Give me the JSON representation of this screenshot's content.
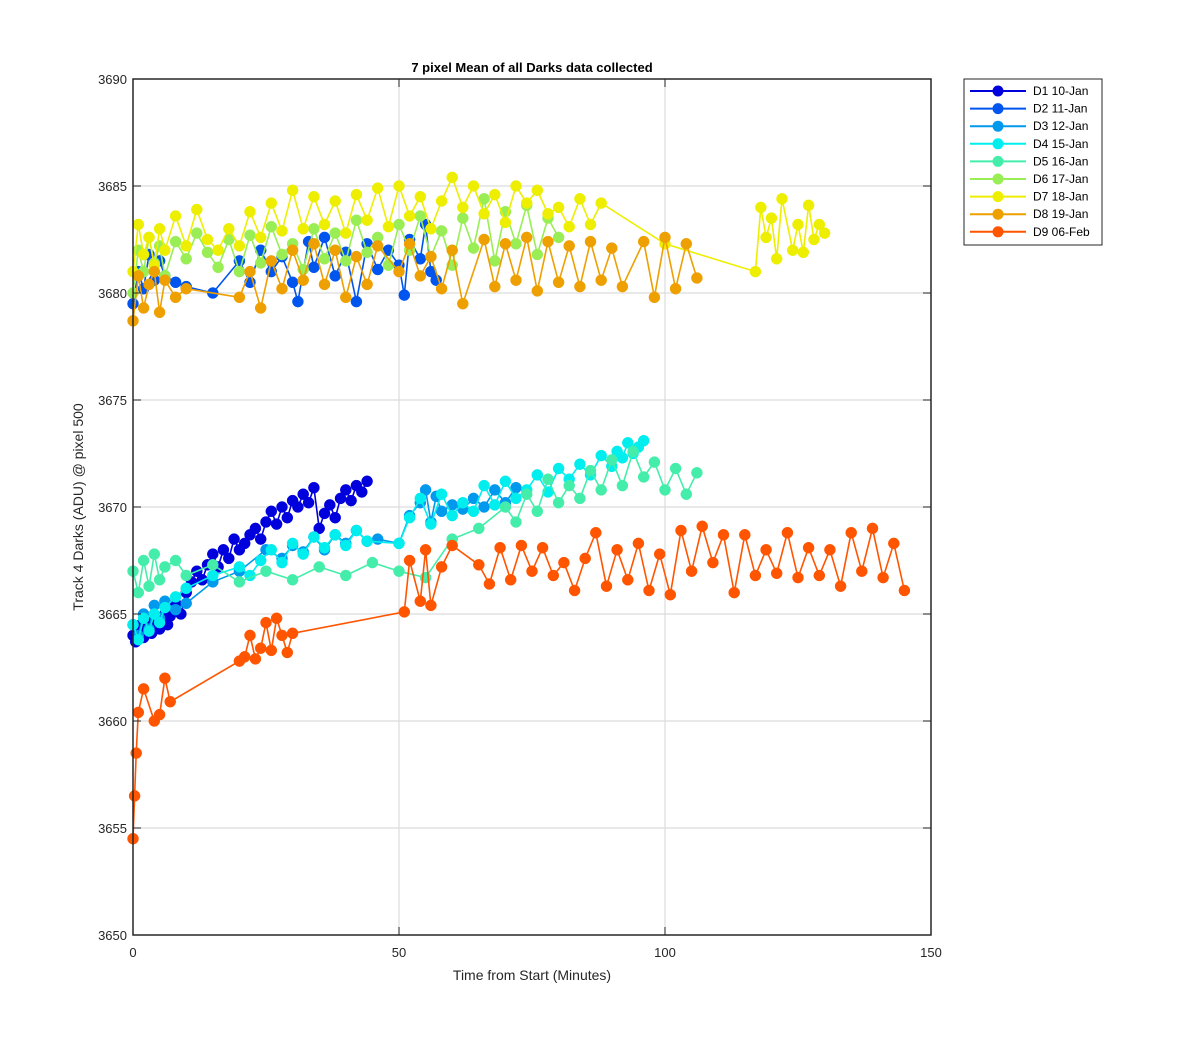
{
  "chart_data": {
    "type": "line",
    "title": "7 pixel Mean of all Darks data collected",
    "xlabel": "Time from Start (Minutes)",
    "ylabel": "Track 4 Darks (ADU) @ pixel 500",
    "xlim": [
      0,
      150
    ],
    "ylim": [
      3650,
      3690
    ],
    "xticks": [
      0,
      50,
      100,
      150
    ],
    "yticks": [
      3650,
      3655,
      3660,
      3665,
      3670,
      3675,
      3680,
      3685,
      3690
    ],
    "grid": true,
    "legend_position": "outside-top-right",
    "marker": "circle",
    "series": [
      {
        "name": "D1 10-Jan",
        "color": "#0000dd",
        "x": [
          0,
          0.5,
          1,
          1.5,
          2,
          2.5,
          3,
          3.5,
          4,
          4.5,
          5,
          5.5,
          6,
          6.5,
          7,
          8,
          9,
          10,
          11,
          12,
          13,
          14,
          15,
          16,
          17,
          18,
          19,
          20,
          21,
          22,
          23,
          24,
          25,
          26,
          27,
          28,
          29,
          30,
          31,
          32,
          33,
          34,
          35,
          36,
          37,
          38,
          39,
          40,
          41,
          42,
          43,
          44
        ],
        "y": [
          3664.0,
          3663.7,
          3664.2,
          3664.5,
          3663.9,
          3664.3,
          3664.6,
          3664.1,
          3664.4,
          3664.8,
          3664.3,
          3664.6,
          3665.0,
          3664.5,
          3664.9,
          3665.5,
          3665.0,
          3666.0,
          3666.5,
          3667.0,
          3666.6,
          3667.3,
          3667.8,
          3667.2,
          3668.0,
          3667.6,
          3668.5,
          3668.0,
          3668.3,
          3668.7,
          3669.0,
          3668.5,
          3669.3,
          3669.8,
          3669.2,
          3670.0,
          3669.5,
          3670.3,
          3670.0,
          3670.6,
          3670.2,
          3670.9,
          3669.0,
          3669.7,
          3670.1,
          3669.5,
          3670.4,
          3670.8,
          3670.3,
          3671.0,
          3670.7,
          3671.2
        ]
      },
      {
        "name": "D2 11-Jan",
        "color": "#0055ee",
        "x": [
          0,
          1,
          2,
          3,
          4,
          5,
          6,
          8,
          10,
          15,
          20,
          22,
          24,
          26,
          28,
          30,
          31,
          33,
          34,
          36,
          38,
          40,
          42,
          44,
          46,
          48,
          50,
          51,
          52,
          54,
          55,
          56,
          57
        ],
        "y": [
          3679.5,
          3681.0,
          3680.2,
          3681.8,
          3680.6,
          3681.5,
          3680.8,
          3680.5,
          3680.3,
          3680.0,
          3681.5,
          3680.5,
          3682.0,
          3681.0,
          3681.7,
          3680.5,
          3679.6,
          3682.4,
          3681.2,
          3682.6,
          3680.8,
          3681.9,
          3679.6,
          3682.3,
          3681.1,
          3682.0,
          3681.3,
          3679.9,
          3682.5,
          3681.6,
          3683.2,
          3681.0,
          3680.6
        ]
      },
      {
        "name": "D3 12-Jan",
        "color": "#0099ee",
        "x": [
          0,
          1,
          2,
          3,
          4,
          5,
          6,
          8,
          10,
          15,
          20,
          25,
          28,
          30,
          32,
          34,
          36,
          38,
          40,
          42,
          44,
          46,
          50,
          52,
          54,
          55,
          56,
          57,
          58,
          60,
          62,
          64,
          66,
          68,
          70,
          72
        ],
        "y": [
          3664.5,
          3664.0,
          3665.0,
          3664.3,
          3665.4,
          3664.8,
          3665.6,
          3665.2,
          3665.5,
          3666.5,
          3667.0,
          3668.0,
          3667.6,
          3668.2,
          3667.9,
          3668.6,
          3668.0,
          3668.7,
          3668.3,
          3668.9,
          3668.4,
          3668.5,
          3668.3,
          3669.6,
          3670.2,
          3670.8,
          3669.3,
          3670.5,
          3669.8,
          3670.1,
          3669.9,
          3670.4,
          3670.0,
          3670.8,
          3670.2,
          3670.9
        ]
      },
      {
        "name": "D4 15-Jan",
        "color": "#00eeee",
        "x": [
          0,
          1,
          2,
          3,
          4,
          5,
          6,
          8,
          10,
          15,
          20,
          22,
          24,
          26,
          28,
          30,
          32,
          34,
          36,
          38,
          40,
          42,
          44,
          50,
          52,
          54,
          56,
          58,
          60,
          62,
          64,
          66,
          68,
          70,
          72,
          74,
          76,
          78,
          80,
          82,
          84,
          86,
          88,
          90,
          91,
          92,
          93,
          94,
          95,
          96
        ],
        "y": [
          3664.5,
          3663.8,
          3664.8,
          3664.2,
          3665.0,
          3664.6,
          3665.3,
          3665.8,
          3666.2,
          3666.8,
          3667.2,
          3666.8,
          3667.5,
          3668.0,
          3667.4,
          3668.3,
          3667.8,
          3668.6,
          3668.1,
          3668.7,
          3668.2,
          3668.9,
          3668.4,
          3668.3,
          3669.5,
          3670.4,
          3669.2,
          3670.6,
          3669.6,
          3670.2,
          3669.8,
          3671.0,
          3670.1,
          3671.2,
          3670.4,
          3670.8,
          3671.5,
          3670.7,
          3671.8,
          3671.3,
          3672.0,
          3671.5,
          3672.4,
          3671.9,
          3672.6,
          3672.3,
          3673.0,
          3672.5,
          3672.8,
          3673.1
        ]
      },
      {
        "name": "D5 16-Jan",
        "color": "#44eeaa",
        "x": [
          0,
          1,
          2,
          3,
          4,
          5,
          6,
          8,
          10,
          15,
          20,
          25,
          30,
          35,
          40,
          45,
          50,
          55,
          60,
          65,
          70,
          72,
          74,
          76,
          78,
          80,
          82,
          84,
          86,
          88,
          90,
          92,
          94,
          96,
          98,
          100,
          102,
          104,
          106
        ],
        "y": [
          3667.0,
          3666.0,
          3667.5,
          3666.3,
          3667.8,
          3666.6,
          3667.2,
          3667.5,
          3666.8,
          3667.3,
          3666.5,
          3667.0,
          3666.6,
          3667.2,
          3666.8,
          3667.4,
          3667.0,
          3666.7,
          3668.5,
          3669.0,
          3670.0,
          3669.3,
          3670.6,
          3669.8,
          3671.3,
          3670.2,
          3671.0,
          3670.4,
          3671.7,
          3670.8,
          3672.2,
          3671.0,
          3672.6,
          3671.4,
          3672.1,
          3670.8,
          3671.8,
          3670.6,
          3671.6
        ]
      },
      {
        "name": "D6 17-Jan",
        "color": "#99ee55",
        "x": [
          0,
          1,
          2,
          3,
          4,
          5,
          6,
          8,
          10,
          12,
          14,
          16,
          18,
          20,
          22,
          24,
          26,
          28,
          30,
          32,
          34,
          36,
          38,
          40,
          42,
          44,
          46,
          48,
          50,
          52,
          54,
          56,
          58,
          60,
          62,
          64,
          66,
          68,
          70,
          72,
          74,
          76,
          78,
          80
        ],
        "y": [
          3680.0,
          3682.0,
          3681.0,
          3682.6,
          3681.4,
          3682.2,
          3680.8,
          3682.4,
          3681.6,
          3682.8,
          3681.9,
          3681.2,
          3682.5,
          3681.0,
          3682.7,
          3681.4,
          3683.1,
          3681.8,
          3682.3,
          3681.1,
          3683.0,
          3681.6,
          3682.8,
          3681.5,
          3683.4,
          3681.9,
          3682.6,
          3681.3,
          3683.2,
          3682.0,
          3683.6,
          3681.7,
          3682.9,
          3681.3,
          3683.5,
          3682.1,
          3684.4,
          3681.5,
          3683.8,
          3682.3,
          3684.1,
          3681.8,
          3683.5,
          3682.6
        ]
      },
      {
        "name": "D7 18-Jan",
        "color": "#eeee00",
        "x": [
          0,
          1,
          2,
          3,
          4,
          5,
          6,
          8,
          10,
          12,
          14,
          16,
          18,
          20,
          22,
          24,
          26,
          28,
          30,
          32,
          34,
          36,
          38,
          40,
          42,
          44,
          46,
          48,
          50,
          52,
          54,
          56,
          58,
          60,
          62,
          64,
          66,
          68,
          70,
          72,
          74,
          76,
          78,
          80,
          82,
          84,
          86,
          88,
          100,
          117,
          118,
          119,
          120,
          121,
          122,
          124,
          125,
          126,
          127,
          128,
          129,
          130
        ],
        "y": [
          3681.0,
          3683.2,
          3681.8,
          3682.6,
          3681.3,
          3683.0,
          3682.0,
          3683.6,
          3682.2,
          3683.9,
          3682.5,
          3682.0,
          3683.0,
          3682.2,
          3683.8,
          3682.6,
          3684.2,
          3682.9,
          3684.8,
          3683.0,
          3684.5,
          3683.2,
          3684.3,
          3682.8,
          3684.6,
          3683.4,
          3684.9,
          3683.1,
          3685.0,
          3683.6,
          3684.5,
          3683.0,
          3684.3,
          3685.4,
          3684.0,
          3685.0,
          3683.7,
          3684.6,
          3683.3,
          3685.0,
          3684.2,
          3684.8,
          3683.7,
          3684.0,
          3683.1,
          3684.4,
          3683.2,
          3684.2,
          3682.3,
          3681.0,
          3684.0,
          3682.6,
          3683.5,
          3681.6,
          3684.4,
          3682.0,
          3683.2,
          3681.9,
          3684.1,
          3682.5,
          3683.2,
          3682.8
        ]
      },
      {
        "name": "D8 19-Jan",
        "color": "#eea000",
        "x": [
          0,
          1,
          2,
          3,
          4,
          5,
          6,
          8,
          10,
          20,
          22,
          24,
          26,
          28,
          30,
          32,
          34,
          36,
          38,
          40,
          42,
          44,
          46,
          50,
          52,
          54,
          56,
          58,
          60,
          62,
          66,
          68,
          70,
          72,
          74,
          76,
          78,
          80,
          82,
          84,
          86,
          88,
          90,
          92,
          96,
          98,
          100,
          102,
          104,
          106
        ],
        "y": [
          3678.7,
          3680.8,
          3679.3,
          3680.4,
          3681.0,
          3679.1,
          3680.6,
          3679.8,
          3680.2,
          3679.8,
          3681.0,
          3679.3,
          3681.5,
          3680.2,
          3682.0,
          3680.6,
          3682.3,
          3680.4,
          3682.0,
          3679.8,
          3681.7,
          3680.4,
          3682.2,
          3681.0,
          3682.3,
          3680.8,
          3681.7,
          3680.2,
          3682.0,
          3679.5,
          3682.5,
          3680.3,
          3682.3,
          3680.6,
          3682.6,
          3680.1,
          3682.4,
          3680.5,
          3682.2,
          3680.3,
          3682.4,
          3680.6,
          3682.1,
          3680.3,
          3682.4,
          3679.8,
          3682.6,
          3680.2,
          3682.3,
          3680.7
        ]
      },
      {
        "name": "D9 06-Feb",
        "color": "#ff5500",
        "x": [
          0,
          0.3,
          0.6,
          1,
          2,
          4,
          5,
          6,
          7,
          20,
          21,
          22,
          23,
          24,
          25,
          26,
          27,
          28,
          29,
          30,
          51,
          52,
          54,
          55,
          56,
          58,
          60,
          65,
          67,
          69,
          71,
          73,
          75,
          77,
          79,
          81,
          83,
          85,
          87,
          89,
          91,
          93,
          95,
          97,
          99,
          101,
          103,
          105,
          107,
          109,
          111,
          113,
          115,
          117,
          119,
          121,
          123,
          125,
          127,
          129,
          131,
          133,
          135,
          137,
          139,
          141,
          143,
          145
        ],
        "y": [
          3654.5,
          3656.5,
          3658.5,
          3660.4,
          3661.5,
          3660.0,
          3660.3,
          3662.0,
          3660.9,
          3662.8,
          3663.0,
          3664.0,
          3662.9,
          3663.4,
          3664.6,
          3663.3,
          3664.8,
          3664.0,
          3663.2,
          3664.1,
          3665.1,
          3667.5,
          3665.6,
          3668.0,
          3665.4,
          3667.2,
          3668.2,
          3667.3,
          3666.4,
          3668.1,
          3666.6,
          3668.2,
          3667.0,
          3668.1,
          3666.8,
          3667.4,
          3666.1,
          3667.6,
          3668.8,
          3666.3,
          3668.0,
          3666.6,
          3668.3,
          3666.1,
          3667.8,
          3665.9,
          3668.9,
          3667.0,
          3669.1,
          3667.4,
          3668.7,
          3666.0,
          3668.7,
          3666.8,
          3668.0,
          3666.9,
          3668.8,
          3666.7,
          3668.1,
          3666.8,
          3668.0,
          3666.3,
          3668.8,
          3667.0,
          3669.0,
          3666.7,
          3668.3,
          3666.1
        ]
      }
    ]
  }
}
